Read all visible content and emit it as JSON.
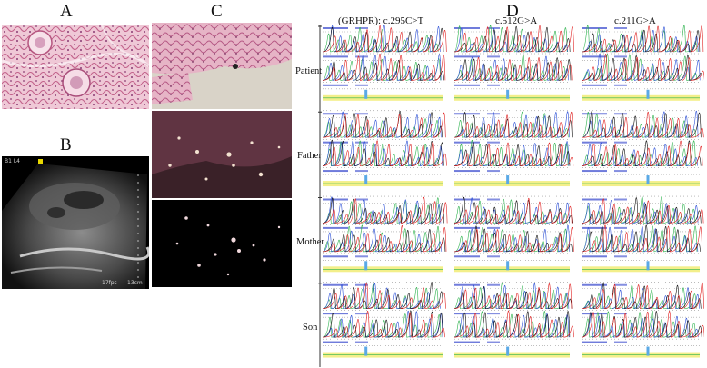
{
  "figure": {
    "panels": [
      {
        "id": "A",
        "label": "A",
        "content": "histology-pas"
      },
      {
        "id": "B",
        "label": "B",
        "content": "renal-ultrasound"
      },
      {
        "id": "C",
        "label": "C",
        "content": "polarized-light-microscopy"
      },
      {
        "id": "D",
        "label": "D",
        "content": "sanger-chromatograms"
      }
    ],
    "ultrasound": {
      "corner_text": "B1 L4",
      "scale_text": "17fps",
      "depth_text": "13cm"
    },
    "sequencing": {
      "mutations": [
        "(GRHPR): c.295C>T",
        "c.512G>A",
        "c.211G>A"
      ],
      "members": [
        "Patient",
        "Father",
        "Mother",
        "Son"
      ]
    },
    "colors": {
      "trace_A": "#2bb24c",
      "trace_C": "#2b4fd6",
      "trace_G": "#111111",
      "trace_T": "#e02020",
      "header_blue": "#3344cc",
      "diff_yellow": "#f3ef8a"
    }
  }
}
